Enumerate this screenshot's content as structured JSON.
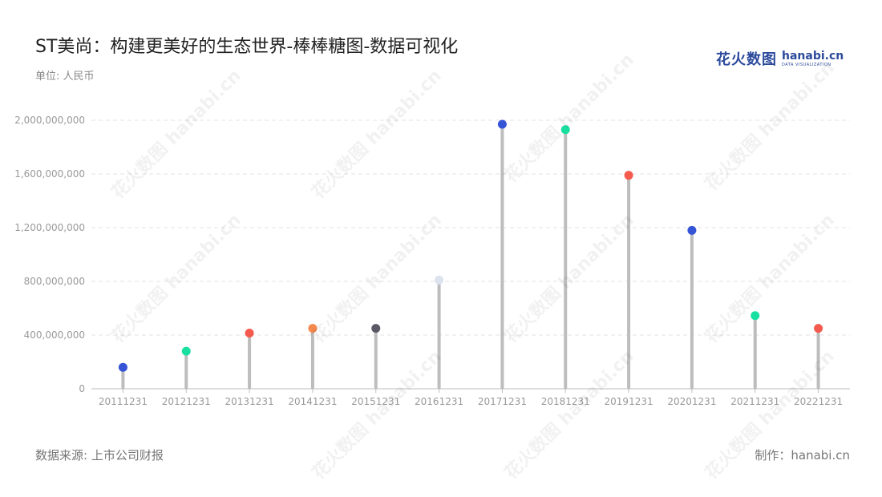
{
  "title": "ST美尚：构建更美好的生态世界-棒棒糖图-数据可视化",
  "unit_label": "单位: 人民币",
  "brand": {
    "cn": "花火数图",
    "en": "hanabi.cn",
    "sub": "DATA VISUALIZATION"
  },
  "footer": {
    "source": "数据来源: 上市公司财报",
    "maker": "制作：hanabi.cn"
  },
  "colors": {
    "stem": "#bdbdbd",
    "grid": "#e3e3e3",
    "axis": "#bdbdbd",
    "tick_text": "#999999"
  },
  "chart_data": {
    "type": "lollipop",
    "title": "ST美尚：构建更美好的生态世界-棒棒糖图-数据可视化",
    "xlabel": "",
    "ylabel": "单位: 人民币",
    "ylim": [
      0,
      2000000000
    ],
    "yticks": [
      0,
      400000000,
      800000000,
      1200000000,
      1600000000,
      2000000000
    ],
    "ytick_labels": [
      "0",
      "400,000,000",
      "800,000,000",
      "1,200,000,000",
      "1,600,000,000",
      "2,000,000,000"
    ],
    "grid": true,
    "categories": [
      "20111231",
      "20121231",
      "20131231",
      "20141231",
      "20151231",
      "20161231",
      "20171231",
      "20181231",
      "20191231",
      "20201231",
      "20211231",
      "20221231"
    ],
    "values": [
      160000000,
      280000000,
      415000000,
      450000000,
      450000000,
      810000000,
      1970000000,
      1930000000,
      1590000000,
      1180000000,
      545000000,
      450000000
    ],
    "dot_colors": [
      "#3654d6",
      "#19e0a0",
      "#f55a4e",
      "#f5894e",
      "#5a5a66",
      "#dde3ee",
      "#3654d6",
      "#19e0a0",
      "#f55a4e",
      "#3654d6",
      "#19e0a0",
      "#f55a4e"
    ]
  }
}
